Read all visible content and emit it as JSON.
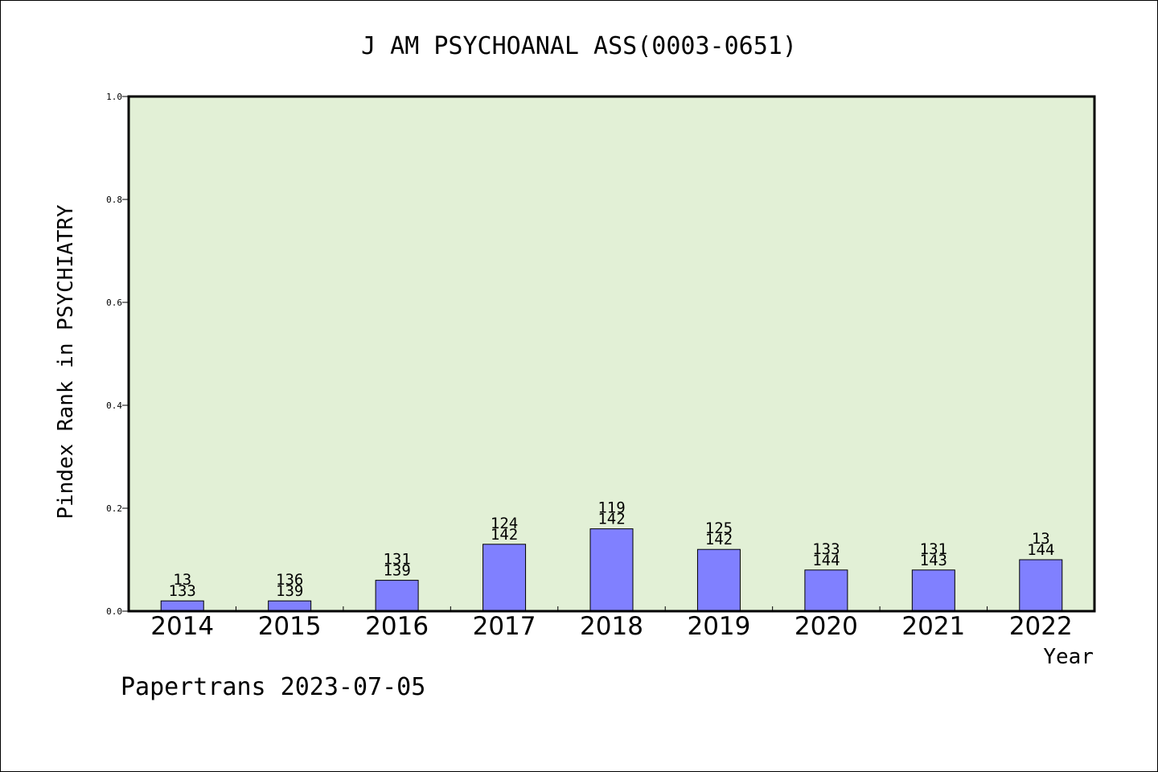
{
  "chart_data": {
    "type": "bar",
    "title": "J AM PSYCHOANAL ASS(0003-0651)",
    "xlabel": "Year",
    "ylabel": "Pindex Rank in PSYCHIATRY",
    "ylim": [
      0,
      1.0
    ],
    "yticks": [
      "0.0",
      "0.2",
      "0.4",
      "0.6",
      "0.8",
      "1.0"
    ],
    "grid": false,
    "categories": [
      "2014",
      "2015",
      "2016",
      "2017",
      "2018",
      "2019",
      "2020",
      "2021",
      "2022"
    ],
    "values": [
      0.02,
      0.02,
      0.06,
      0.13,
      0.16,
      0.12,
      0.08,
      0.08,
      0.1
    ],
    "labels_top": [
      "13",
      "136",
      "131",
      "124",
      "119",
      "125",
      "133",
      "131",
      "13"
    ],
    "labels_bottom": [
      "133",
      "139",
      "139",
      "142",
      "142",
      "142",
      "144",
      "143",
      "144"
    ],
    "colors": {
      "bar": "#8080ff",
      "plot_background": "#e2f0d6",
      "axis": "#000000"
    }
  },
  "footer": "Papertrans 2023-07-05"
}
